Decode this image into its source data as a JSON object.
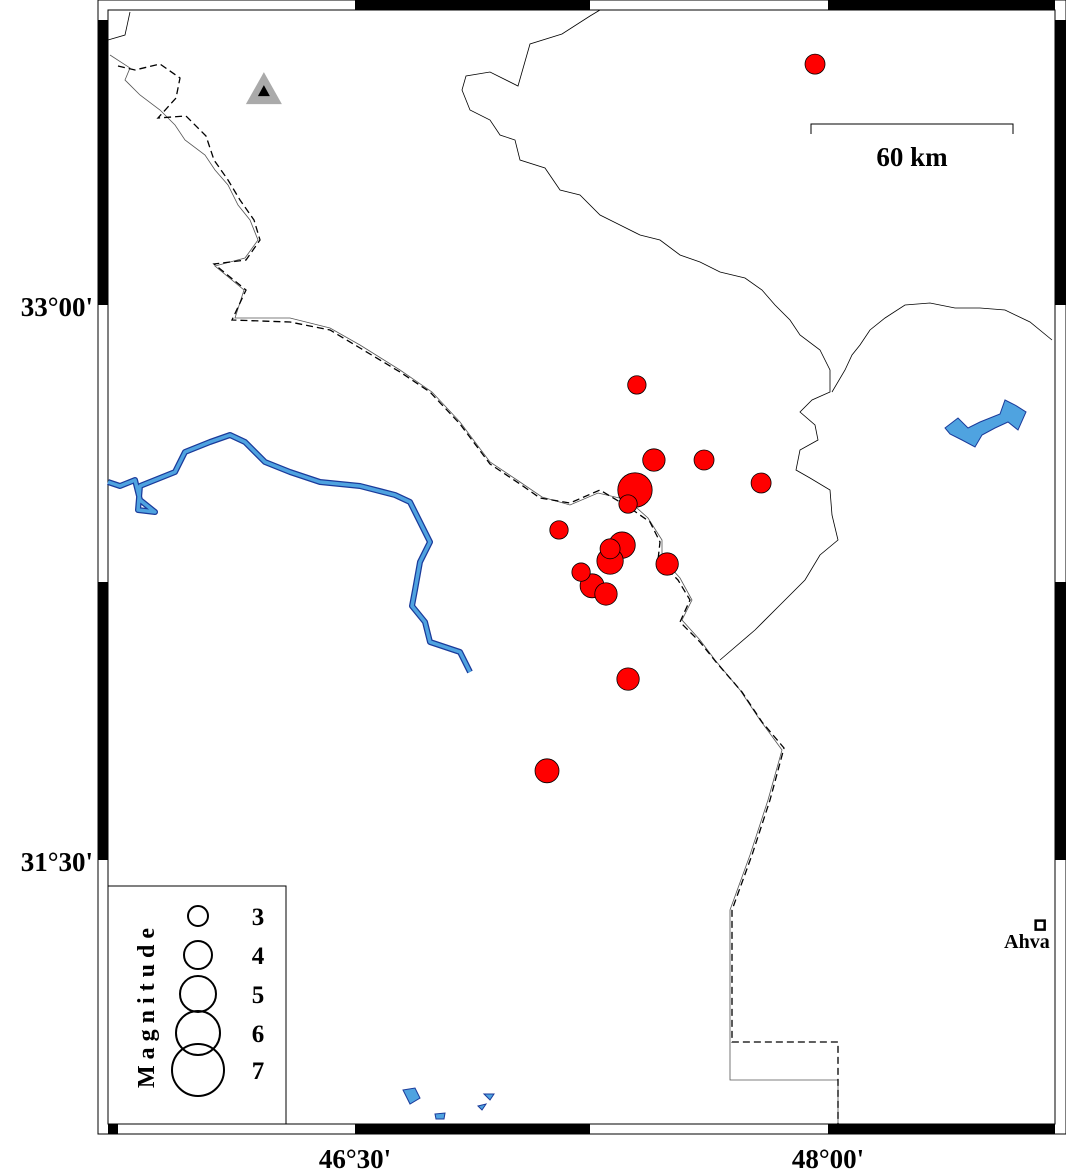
{
  "map": {
    "lon_labels": [
      "46°30'",
      "48°00'"
    ],
    "lat_labels": [
      "33°00'",
      "31°30'"
    ],
    "lon_ticks": [
      46.5,
      48.0
    ],
    "lat_ticks": [
      33.0,
      31.5
    ],
    "scale_bar": {
      "label": "60 km"
    },
    "city": {
      "name": "Ahvaz",
      "visible_label": "Ahva",
      "lon": 48.673,
      "lat": 31.324
    },
    "station": {
      "icon": "triangle-station-icon",
      "lon": 46.211,
      "lat": 33.578
    },
    "colors": {
      "event_fill": "#ff0000",
      "water": "#4fa3e0",
      "water_outline": "#1a3a9a",
      "border": "#000000"
    }
  },
  "legend": {
    "title": "Magnitude",
    "items": [
      {
        "label": "3",
        "mag": 3
      },
      {
        "label": "4",
        "mag": 4
      },
      {
        "label": "5",
        "mag": 5
      },
      {
        "label": "6",
        "mag": 6
      },
      {
        "label": "7",
        "mag": 7
      }
    ]
  },
  "events": [
    {
      "lon": 47.959,
      "lat": 33.651,
      "mag": 3.0
    },
    {
      "lon": 47.394,
      "lat": 32.784,
      "mag": 2.8
    },
    {
      "lon": 47.448,
      "lat": 32.581,
      "mag": 3.3
    },
    {
      "lon": 47.607,
      "lat": 32.581,
      "mag": 3.0
    },
    {
      "lon": 47.788,
      "lat": 32.519,
      "mag": 3.0
    },
    {
      "lon": 47.388,
      "lat": 32.5,
      "mag": 4.8
    },
    {
      "lon": 47.366,
      "lat": 32.462,
      "mag": 2.8
    },
    {
      "lon": 47.147,
      "lat": 32.392,
      "mag": 2.8
    },
    {
      "lon": 47.347,
      "lat": 32.351,
      "mag": 3.8
    },
    {
      "lon": 47.309,
      "lat": 32.308,
      "mag": 3.8
    },
    {
      "lon": 47.309,
      "lat": 32.341,
      "mag": 3.0
    },
    {
      "lon": 47.49,
      "lat": 32.3,
      "mag": 3.3
    },
    {
      "lon": 47.217,
      "lat": 32.278,
      "mag": 2.8
    },
    {
      "lon": 47.296,
      "lat": 32.219,
      "mag": 3.3
    },
    {
      "lon": 47.252,
      "lat": 32.241,
      "mag": 3.5
    },
    {
      "lon": 47.366,
      "lat": 31.989,
      "mag": 3.3
    },
    {
      "lon": 47.109,
      "lat": 31.741,
      "mag": 3.5
    }
  ]
}
